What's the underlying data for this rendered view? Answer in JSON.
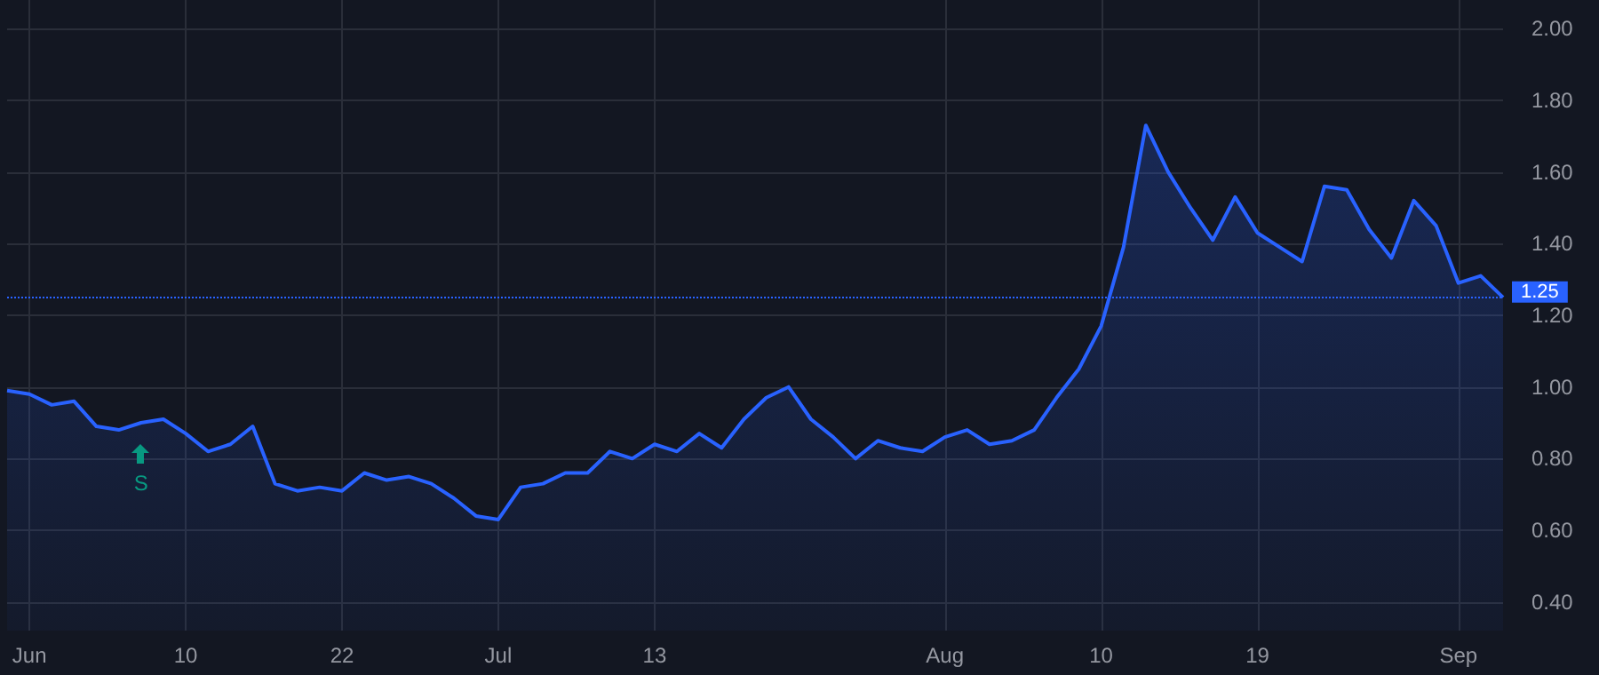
{
  "chart_data": {
    "type": "area",
    "categories": [
      null,
      "Jun",
      null,
      null,
      null,
      null,
      null,
      null,
      "10",
      null,
      null,
      null,
      null,
      null,
      null,
      "22",
      null,
      null,
      null,
      null,
      null,
      null,
      "Jul",
      null,
      null,
      null,
      null,
      null,
      null,
      "13",
      null,
      null,
      null,
      null,
      null,
      null,
      null,
      null,
      null,
      null,
      null,
      null,
      "Aug",
      null,
      null,
      null,
      null,
      null,
      null,
      "10",
      null,
      null,
      null,
      null,
      null,
      null,
      "19",
      null,
      null,
      null,
      null,
      null,
      null,
      null,
      null,
      "Sep",
      null,
      null
    ],
    "series": [
      {
        "color": "#2962ff",
        "values": [
          0.99,
          0.98,
          0.95,
          0.96,
          0.89,
          0.88,
          0.9,
          0.91,
          0.87,
          0.82,
          0.84,
          0.89,
          0.73,
          0.71,
          0.72,
          0.71,
          0.76,
          0.74,
          0.75,
          0.73,
          0.69,
          0.64,
          0.63,
          0.72,
          0.73,
          0.76,
          0.76,
          0.82,
          0.8,
          0.84,
          0.82,
          0.87,
          0.83,
          0.91,
          0.97,
          1.0,
          0.91,
          0.86,
          0.8,
          0.85,
          0.83,
          0.82,
          0.86,
          0.88,
          0.84,
          0.85,
          0.88,
          0.97,
          1.05,
          1.17,
          1.39,
          1.73,
          1.6,
          1.5,
          1.41,
          1.53,
          1.43,
          1.39,
          1.35,
          1.56,
          1.55,
          1.44,
          1.36,
          1.52,
          1.45,
          1.29,
          1.31,
          1.25
        ]
      }
    ],
    "ylim": [
      0.32,
      2.08
    ],
    "yticks": [
      {
        "value": 0.4,
        "label": "0.40"
      },
      {
        "value": 0.6,
        "label": "0.60"
      },
      {
        "value": 0.8,
        "label": "0.80"
      },
      {
        "value": 1.0,
        "label": "1.00"
      },
      {
        "value": 1.2,
        "label": "1.20"
      },
      {
        "value": 1.4,
        "label": "1.40"
      },
      {
        "value": 1.6,
        "label": "1.60"
      },
      {
        "value": 1.8,
        "label": "1.80"
      },
      {
        "value": 2.0,
        "label": "2.00"
      }
    ],
    "ref_lines": [
      {
        "axis": "y",
        "value": 1.25,
        "label": "1.25",
        "color": "#2962ff",
        "line_style": "dotted"
      }
    ],
    "annotations": [
      "S"
    ],
    "grid": true,
    "marker": "none"
  }
}
